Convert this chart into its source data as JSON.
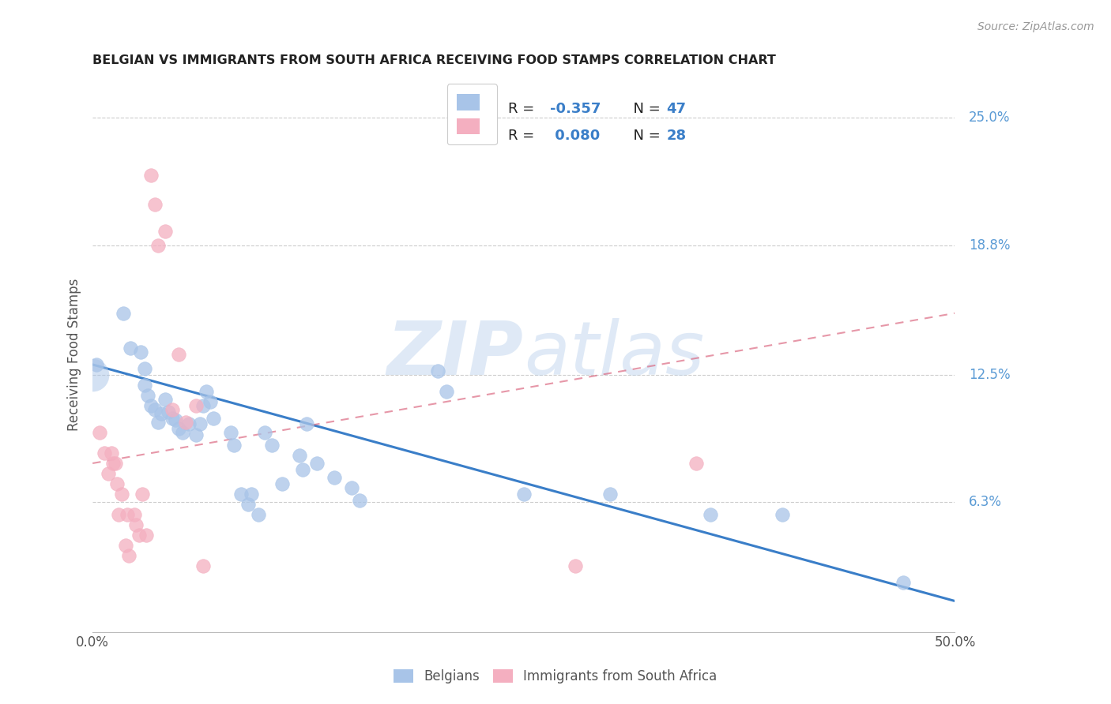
{
  "title": "BELGIAN VS IMMIGRANTS FROM SOUTH AFRICA RECEIVING FOOD STAMPS CORRELATION CHART",
  "source": "Source: ZipAtlas.com",
  "ylabel": "Receiving Food Stamps",
  "watermark": "ZIPatlas",
  "xlim": [
    0.0,
    0.5
  ],
  "ylim": [
    0.0,
    0.27
  ],
  "xticks": [
    0.0,
    0.1,
    0.2,
    0.3,
    0.4,
    0.5
  ],
  "xtick_labels": [
    "0.0%",
    "",
    "",
    "",
    "",
    "50.0%"
  ],
  "ytick_positions": [
    0.25,
    0.188,
    0.125,
    0.063,
    0.0
  ],
  "ytick_labels": [
    "25.0%",
    "18.8%",
    "12.5%",
    "6.3%",
    ""
  ],
  "legend_blue_r": "-0.357",
  "legend_blue_n": "47",
  "legend_pink_r": "0.080",
  "legend_pink_n": "28",
  "blue_color": "#a8c4e8",
  "pink_color": "#f4afc0",
  "blue_line_color": "#3a7ec8",
  "pink_line_color": "#d9607a",
  "title_color": "#222222",
  "source_color": "#999999",
  "right_label_color": "#5b9bd5",
  "label_color": "#555555",
  "legend_text_color": "#222222",
  "legend_value_color": "#3a7ec8",
  "blue_scatter": [
    [
      0.002,
      0.13
    ],
    [
      0.018,
      0.155
    ],
    [
      0.022,
      0.138
    ],
    [
      0.028,
      0.136
    ],
    [
      0.03,
      0.128
    ],
    [
      0.03,
      0.12
    ],
    [
      0.032,
      0.115
    ],
    [
      0.034,
      0.11
    ],
    [
      0.036,
      0.108
    ],
    [
      0.038,
      0.102
    ],
    [
      0.04,
      0.106
    ],
    [
      0.042,
      0.113
    ],
    [
      0.044,
      0.107
    ],
    [
      0.046,
      0.104
    ],
    [
      0.048,
      0.103
    ],
    [
      0.05,
      0.099
    ],
    [
      0.052,
      0.097
    ],
    [
      0.056,
      0.101
    ],
    [
      0.06,
      0.096
    ],
    [
      0.062,
      0.101
    ],
    [
      0.064,
      0.11
    ],
    [
      0.066,
      0.117
    ],
    [
      0.068,
      0.112
    ],
    [
      0.07,
      0.104
    ],
    [
      0.08,
      0.097
    ],
    [
      0.082,
      0.091
    ],
    [
      0.086,
      0.067
    ],
    [
      0.09,
      0.062
    ],
    [
      0.092,
      0.067
    ],
    [
      0.096,
      0.057
    ],
    [
      0.1,
      0.097
    ],
    [
      0.104,
      0.091
    ],
    [
      0.11,
      0.072
    ],
    [
      0.12,
      0.086
    ],
    [
      0.122,
      0.079
    ],
    [
      0.124,
      0.101
    ],
    [
      0.13,
      0.082
    ],
    [
      0.14,
      0.075
    ],
    [
      0.15,
      0.07
    ],
    [
      0.155,
      0.064
    ],
    [
      0.2,
      0.127
    ],
    [
      0.205,
      0.117
    ],
    [
      0.25,
      0.067
    ],
    [
      0.3,
      0.067
    ],
    [
      0.358,
      0.057
    ],
    [
      0.4,
      0.057
    ],
    [
      0.47,
      0.024
    ]
  ],
  "pink_scatter": [
    [
      0.004,
      0.097
    ],
    [
      0.007,
      0.087
    ],
    [
      0.009,
      0.077
    ],
    [
      0.011,
      0.087
    ],
    [
      0.012,
      0.082
    ],
    [
      0.013,
      0.082
    ],
    [
      0.014,
      0.072
    ],
    [
      0.015,
      0.057
    ],
    [
      0.017,
      0.067
    ],
    [
      0.019,
      0.042
    ],
    [
      0.02,
      0.057
    ],
    [
      0.021,
      0.037
    ],
    [
      0.024,
      0.057
    ],
    [
      0.025,
      0.052
    ],
    [
      0.027,
      0.047
    ],
    [
      0.029,
      0.067
    ],
    [
      0.031,
      0.047
    ],
    [
      0.034,
      0.222
    ],
    [
      0.036,
      0.208
    ],
    [
      0.038,
      0.188
    ],
    [
      0.042,
      0.195
    ],
    [
      0.046,
      0.108
    ],
    [
      0.05,
      0.135
    ],
    [
      0.054,
      0.102
    ],
    [
      0.06,
      0.11
    ],
    [
      0.064,
      0.032
    ],
    [
      0.28,
      0.032
    ],
    [
      0.35,
      0.082
    ]
  ]
}
